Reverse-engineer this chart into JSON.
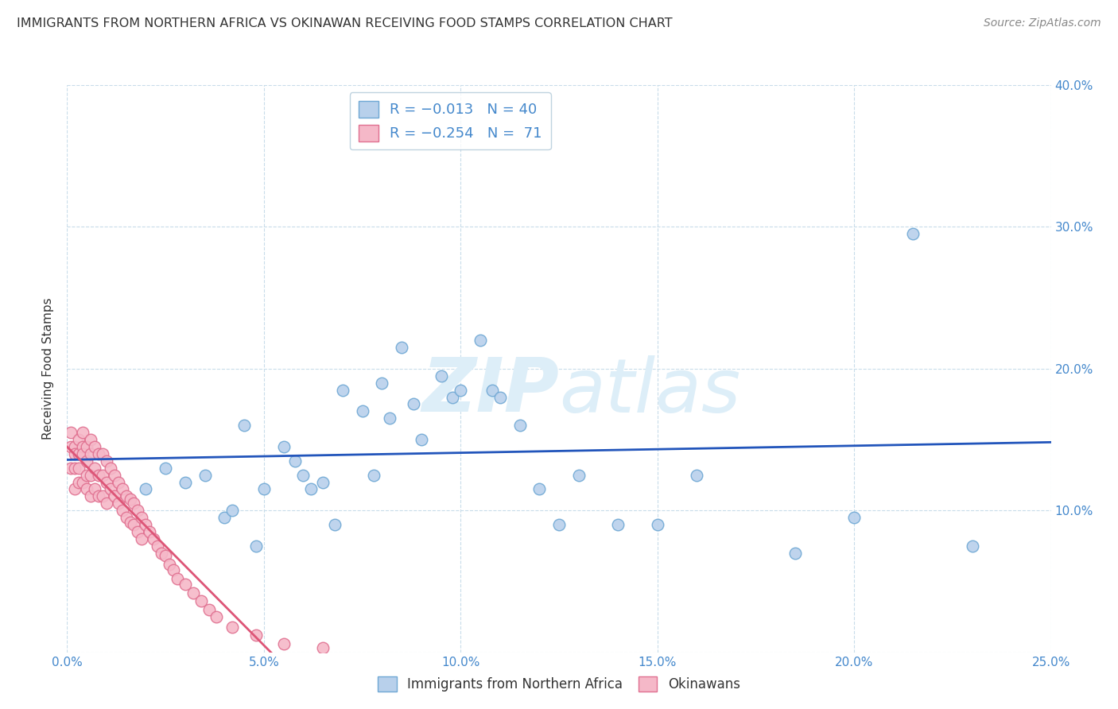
{
  "title": "IMMIGRANTS FROM NORTHERN AFRICA VS OKINAWAN RECEIVING FOOD STAMPS CORRELATION CHART",
  "source": "Source: ZipAtlas.com",
  "ylabel": "Receiving Food Stamps",
  "xlim": [
    0.0,
    0.25
  ],
  "ylim": [
    0.0,
    0.4
  ],
  "xticks": [
    0.0,
    0.05,
    0.1,
    0.15,
    0.2,
    0.25
  ],
  "yticks": [
    0.0,
    0.1,
    0.2,
    0.3,
    0.4
  ],
  "xticklabels": [
    "0.0%",
    "5.0%",
    "10.0%",
    "15.0%",
    "20.0%",
    "25.0%"
  ],
  "yticklabels_right": [
    "",
    "10.0%",
    "20.0%",
    "30.0%",
    "40.0%"
  ],
  "blue_color": "#b8d0eb",
  "blue_edge_color": "#6fa8d4",
  "pink_color": "#f5b8c8",
  "pink_edge_color": "#e07090",
  "blue_line_color": "#2255bb",
  "pink_line_color": "#dd5577",
  "grid_color": "#c8dcea",
  "title_color": "#333333",
  "axis_color": "#4488cc",
  "watermark_color": "#ddeef8",
  "blue_x": [
    0.02,
    0.025,
    0.03,
    0.035,
    0.04,
    0.042,
    0.045,
    0.048,
    0.05,
    0.055,
    0.058,
    0.06,
    0.062,
    0.065,
    0.068,
    0.07,
    0.075,
    0.078,
    0.08,
    0.082,
    0.085,
    0.088,
    0.09,
    0.095,
    0.098,
    0.1,
    0.105,
    0.108,
    0.11,
    0.115,
    0.12,
    0.125,
    0.13,
    0.14,
    0.15,
    0.16,
    0.185,
    0.2,
    0.215,
    0.23
  ],
  "blue_y": [
    0.115,
    0.13,
    0.12,
    0.125,
    0.095,
    0.1,
    0.16,
    0.075,
    0.115,
    0.145,
    0.135,
    0.125,
    0.115,
    0.12,
    0.09,
    0.185,
    0.17,
    0.125,
    0.19,
    0.165,
    0.215,
    0.175,
    0.15,
    0.195,
    0.18,
    0.185,
    0.22,
    0.185,
    0.18,
    0.16,
    0.115,
    0.09,
    0.125,
    0.09,
    0.09,
    0.125,
    0.07,
    0.095,
    0.295,
    0.075
  ],
  "pink_x": [
    0.001,
    0.001,
    0.001,
    0.002,
    0.002,
    0.002,
    0.002,
    0.003,
    0.003,
    0.003,
    0.003,
    0.004,
    0.004,
    0.004,
    0.004,
    0.005,
    0.005,
    0.005,
    0.005,
    0.006,
    0.006,
    0.006,
    0.006,
    0.007,
    0.007,
    0.007,
    0.008,
    0.008,
    0.008,
    0.009,
    0.009,
    0.009,
    0.01,
    0.01,
    0.01,
    0.011,
    0.011,
    0.012,
    0.012,
    0.013,
    0.013,
    0.014,
    0.014,
    0.015,
    0.015,
    0.016,
    0.016,
    0.017,
    0.017,
    0.018,
    0.018,
    0.019,
    0.019,
    0.02,
    0.021,
    0.022,
    0.023,
    0.024,
    0.025,
    0.026,
    0.027,
    0.028,
    0.03,
    0.032,
    0.034,
    0.036,
    0.038,
    0.042,
    0.048,
    0.055,
    0.065
  ],
  "pink_y": [
    0.155,
    0.145,
    0.13,
    0.145,
    0.14,
    0.13,
    0.115,
    0.15,
    0.14,
    0.13,
    0.12,
    0.155,
    0.145,
    0.14,
    0.12,
    0.145,
    0.135,
    0.125,
    0.115,
    0.15,
    0.14,
    0.125,
    0.11,
    0.145,
    0.13,
    0.115,
    0.14,
    0.125,
    0.11,
    0.14,
    0.125,
    0.11,
    0.135,
    0.12,
    0.105,
    0.13,
    0.115,
    0.125,
    0.11,
    0.12,
    0.105,
    0.115,
    0.1,
    0.11,
    0.095,
    0.108,
    0.092,
    0.105,
    0.09,
    0.1,
    0.085,
    0.095,
    0.08,
    0.09,
    0.085,
    0.08,
    0.075,
    0.07,
    0.068,
    0.062,
    0.058,
    0.052,
    0.048,
    0.042,
    0.036,
    0.03,
    0.025,
    0.018,
    0.012,
    0.006,
    0.003
  ]
}
